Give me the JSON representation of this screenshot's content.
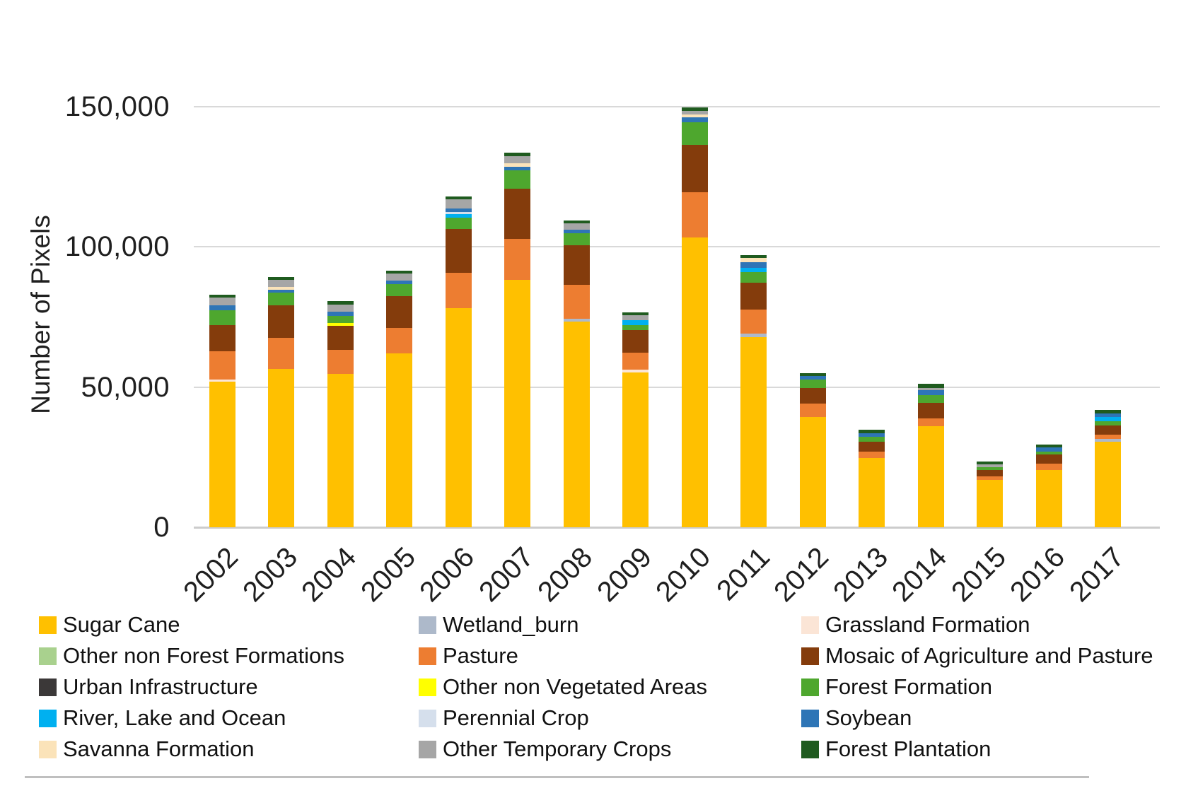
{
  "y_axis": {
    "title": "Number of Pixels",
    "ticks": [
      {
        "label": "150,000",
        "value": 150000
      },
      {
        "label": "100,000",
        "value": 100000
      },
      {
        "label": "50,000",
        "value": 50000
      },
      {
        "label": "0",
        "value": 0
      }
    ]
  },
  "chart_data": {
    "type": "bar",
    "subtype": "stacked-vertical",
    "title": "",
    "xlabel": "",
    "ylabel": "Number of Pixels",
    "ylim": [
      0,
      150000
    ],
    "grid": true,
    "legend_position": "bottom",
    "categories": [
      "2002",
      "2003",
      "2004",
      "2005",
      "2006",
      "2007",
      "2008",
      "2009",
      "2010",
      "2011",
      "2012",
      "2013",
      "2014",
      "2015",
      "2016",
      "2017"
    ],
    "series": [
      {
        "name": "Sugar Cane",
        "color": "#FFC000",
        "values": [
          52000,
          56600,
          54600,
          62000,
          78100,
          88300,
          73300,
          55300,
          103400,
          67700,
          39300,
          24800,
          36100,
          16800,
          20400,
          30500
        ]
      },
      {
        "name": "Wetland_burn",
        "color": "#ADB9CA",
        "values": [
          0,
          0,
          0,
          0,
          0,
          0,
          1100,
          0,
          0,
          1300,
          0,
          0,
          0,
          0,
          0,
          1100
        ]
      },
      {
        "name": "Grassland Formation",
        "color": "#FBE5D6",
        "values": [
          800,
          0,
          0,
          0,
          0,
          0,
          0,
          1000,
          0,
          0,
          0,
          0,
          0,
          0,
          0,
          0
        ]
      },
      {
        "name": "Other non Forest Formations",
        "color": "#A9D18E",
        "values": [
          0,
          0,
          0,
          0,
          0,
          0,
          0,
          0,
          0,
          0,
          0,
          0,
          0,
          0,
          0,
          0
        ]
      },
      {
        "name": "Pasture",
        "color": "#ED7D31",
        "values": [
          10000,
          10900,
          8600,
          9200,
          12600,
          14500,
          12000,
          6000,
          16200,
          8700,
          4800,
          2300,
          2700,
          1300,
          2300,
          1400
        ]
      },
      {
        "name": "Mosaic of Agriculture and Pasture",
        "color": "#843C0C",
        "values": [
          9200,
          11600,
          8600,
          11300,
          15800,
          17900,
          14300,
          8100,
          16800,
          9500,
          5500,
          3400,
          5500,
          2300,
          3200,
          3200
        ]
      },
      {
        "name": "Urban Infrastructure",
        "color": "#3B3838",
        "values": [
          0,
          0,
          0,
          0,
          0,
          0,
          0,
          0,
          0,
          0,
          0,
          0,
          0,
          0,
          0,
          0
        ]
      },
      {
        "name": "Other non Vegetated Areas",
        "color": "#FFFF00",
        "values": [
          0,
          0,
          1100,
          0,
          0,
          0,
          0,
          0,
          0,
          0,
          0,
          0,
          0,
          0,
          0,
          0
        ]
      },
      {
        "name": "Forest Formation",
        "color": "#4EA72E",
        "values": [
          5500,
          4600,
          2500,
          4200,
          3900,
          6500,
          4200,
          1700,
          8000,
          3900,
          3100,
          1700,
          2900,
          1000,
          1200,
          1700
        ]
      },
      {
        "name": "River, Lake and Ocean",
        "color": "#00B0F0",
        "values": [
          0,
          0,
          0,
          0,
          1400,
          0,
          0,
          1900,
          0,
          1500,
          0,
          0,
          0,
          0,
          0,
          1400
        ]
      },
      {
        "name": "Perennial Crop",
        "color": "#D5DFEC",
        "values": [
          0,
          0,
          0,
          0,
          600,
          0,
          0,
          0,
          0,
          0,
          0,
          0,
          0,
          0,
          0,
          0
        ]
      },
      {
        "name": "Soybean",
        "color": "#2E75B6",
        "values": [
          1700,
          1100,
          1400,
          1400,
          1400,
          1400,
          1300,
          0,
          1800,
          1900,
          1300,
          1400,
          1700,
          0,
          1400,
          1400
        ]
      },
      {
        "name": "Savanna Formation",
        "color": "#FBE3B9",
        "values": [
          0,
          1000,
          0,
          0,
          0,
          1300,
          0,
          0,
          1100,
          1500,
          0,
          0,
          0,
          0,
          0,
          0
        ]
      },
      {
        "name": "Other Temporary Crops",
        "color": "#A6A6A6",
        "values": [
          2800,
          2400,
          2700,
          2300,
          3100,
          2500,
          2100,
          1700,
          1100,
          0,
          0,
          0,
          900,
          1100,
          0,
          0
        ]
      },
      {
        "name": "Forest Plantation",
        "color": "#1F5B1F",
        "values": [
          1000,
          1100,
          1100,
          1100,
          1100,
          1200,
          1200,
          1000,
          1400,
          1000,
          1000,
          1100,
          1300,
          1000,
          1100,
          1100
        ]
      }
    ],
    "legend_rows_row_major": [
      "Sugar Cane",
      "Wetland_burn",
      "Grassland Formation",
      "Other non Forest Formations",
      "Pasture",
      "Mosaic of Agriculture and Pasture",
      "Urban Infrastructure",
      "Other non Vegetated Areas",
      "Forest Formation",
      "River, Lake and Ocean",
      "Perennial Crop",
      "Soybean",
      "Savanna Formation",
      "Other Temporary Crops",
      "Forest Plantation"
    ]
  }
}
